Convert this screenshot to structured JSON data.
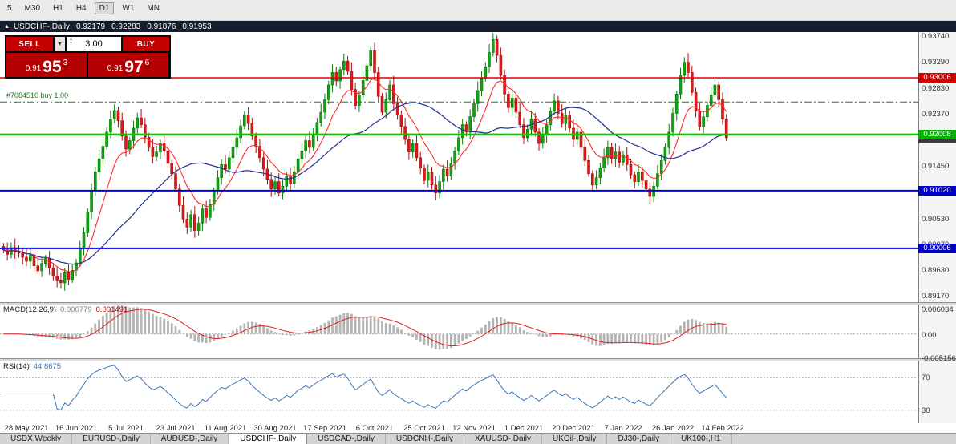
{
  "toolbar": {
    "timeframes": [
      "5",
      "M30",
      "H1",
      "H4",
      "D1",
      "W1",
      "MN"
    ],
    "active": "D1"
  },
  "title_bar": {
    "collapse_icon": "▲",
    "symbol": "USDCHF-,Daily",
    "open": "0.92179",
    "high": "0.92283",
    "low": "0.91876",
    "close": "0.91953"
  },
  "trade_panel": {
    "sell_label": "SELL",
    "buy_label": "BUY",
    "volume": "3.00",
    "dropdown_icon": "▼",
    "spinner_up_icon": "▲",
    "spinner_down_icon": "▼",
    "sell_price": {
      "prefix": "0.91",
      "big": "95",
      "sup": "3"
    },
    "buy_price": {
      "prefix": "0.91",
      "big": "97",
      "sup": "6"
    }
  },
  "position_label": "#7084510 buy 1.00",
  "price_axis": {
    "ticks": [
      "0.93740",
      "0.93290",
      "0.92830",
      "0.92370",
      "0.91910",
      "0.91450",
      "0.90990",
      "0.90530",
      "0.90070",
      "0.89630",
      "0.89170"
    ],
    "badges": [
      {
        "label": "0.91953",
        "price": 0.91953,
        "color": "#3c3c3c"
      },
      {
        "label": "0.93006",
        "price": 0.93006,
        "color": "#d40000"
      },
      {
        "label": "0.92008",
        "price": 0.92008,
        "color": "#00b400"
      },
      {
        "label": "0.91020",
        "price": 0.9102,
        "color": "#0000c8"
      },
      {
        "label": "0.90006",
        "price": 0.90006,
        "color": "#0000c8"
      }
    ]
  },
  "indicators": {
    "macd": {
      "name": "MACD(12,26,9)",
      "value1": "0.000779",
      "value2": "0.001491",
      "axis": [
        {
          "label": "0.006034",
          "value": 0.006034
        },
        {
          "label": "0.00",
          "value": 0
        },
        {
          "label": "-0.005156",
          "value": -0.005156
        }
      ]
    },
    "rsi": {
      "name": "RSI(14)",
      "value": "44.8675",
      "axis": [
        {
          "label": "70",
          "value": 70
        },
        {
          "label": "30",
          "value": 30
        }
      ]
    }
  },
  "date_axis": [
    "28 May 2021",
    "16 Jun 2021",
    "5 Jul 2021",
    "23 Jul 2021",
    "11 Aug 2021",
    "30 Aug 2021",
    "17 Sep 2021",
    "6 Oct 2021",
    "25 Oct 2021",
    "12 Nov 2021",
    "1 Dec 2021",
    "20 Dec 2021",
    "7 Jan 2022",
    "26 Jan 2022",
    "14 Feb 2022"
  ],
  "tabs": [
    {
      "label": "USDX,Weekly",
      "active": false
    },
    {
      "label": "EURUSD-,Daily",
      "active": false
    },
    {
      "label": "AUDUSD-,Daily",
      "active": false
    },
    {
      "label": "USDCHF-,Daily",
      "active": true
    },
    {
      "label": "USDCAD-,Daily",
      "active": false
    },
    {
      "label": "USDCNH-,Daily",
      "active": false
    },
    {
      "label": "XAUUSD-,Daily",
      "active": false
    },
    {
      "label": "UKOil-,Daily",
      "active": false
    },
    {
      "label": "DJ30-,Daily",
      "active": false
    },
    {
      "label": "UK100-,H1",
      "active": false
    }
  ],
  "chart_data": {
    "type": "candlestick",
    "symbol": "USDCHF-",
    "timeframe": "Daily",
    "ohlc_display": {
      "open": 0.92179,
      "high": 0.92283,
      "low": 0.91876,
      "close": 0.91953
    },
    "price_range": [
      0.8906,
      0.9381
    ],
    "closes_pips": [
      8998,
      8990,
      9002,
      8994,
      8992,
      8985,
      8978,
      8989,
      8970,
      8961,
      8974,
      8983,
      8966,
      8952,
      8945,
      8940,
      8958,
      8946,
      8962,
      8975,
      9000,
      9028,
      9065,
      9102,
      9135,
      9158,
      9180,
      9205,
      9228,
      9243,
      9225,
      9198,
      9175,
      9190,
      9212,
      9230,
      9218,
      9196,
      9178,
      9162,
      9170,
      9185,
      9172,
      9150,
      9132,
      9105,
      9076,
      9052,
      9038,
      9060,
      9032,
      9045,
      9070,
      9055,
      9078,
      9102,
      9125,
      9148,
      9140,
      9160,
      9178,
      9195,
      9216,
      9235,
      9220,
      9198,
      9180,
      9160,
      9140,
      9122,
      9105,
      9118,
      9098,
      9110,
      9128,
      9115,
      9135,
      9158,
      9172,
      9190,
      9178,
      9200,
      9222,
      9240,
      9262,
      9288,
      9310,
      9295,
      9315,
      9330,
      9312,
      9280,
      9252,
      9270,
      9296,
      9322,
      9348,
      9310,
      9268,
      9240,
      9262,
      9288,
      9255,
      9235,
      9215,
      9192,
      9170,
      9185,
      9160,
      9142,
      9120,
      9135,
      9112,
      9098,
      9118,
      9140,
      9128,
      9150,
      9172,
      9195,
      9218,
      9205,
      9232,
      9255,
      9278,
      9300,
      9320,
      9345,
      9368,
      9340,
      9305,
      9272,
      9248,
      9265,
      9240,
      9218,
      9195,
      9210,
      9228,
      9205,
      9185,
      9200,
      9218,
      9242,
      9260,
      9238,
      9220,
      9235,
      9212,
      9192,
      9205,
      9178,
      9155,
      9132,
      9112,
      9125,
      9142,
      9160,
      9178,
      9158,
      9170,
      9152,
      9165,
      9148,
      9130,
      9118,
      9135,
      9120,
      9105,
      9092,
      9110,
      9132,
      9155,
      9178,
      9205,
      9238,
      9272,
      9305,
      9328,
      9310,
      9275,
      9242,
      9215,
      9232,
      9252,
      9270,
      9288,
      9262,
      9228,
      9195
    ],
    "grid_first_index": 6,
    "grid_step": 13,
    "first_tick_x": 33,
    "bar_spacing": 4.769,
    "h_lines": [
      {
        "price": 0.93006,
        "color": "#e00000",
        "width": 1.6
      },
      {
        "price": 0.92008,
        "color": "#00cc00",
        "width": 2.4
      },
      {
        "price": 0.9102,
        "color": "#0000e0",
        "width": 2
      },
      {
        "price": 0.90006,
        "color": "#0000e0",
        "width": 2
      }
    ],
    "position_line": {
      "price": 0.9258,
      "label": "#7084510 buy 1.00",
      "color": "#1f7a1f"
    },
    "ma_fast_period": 10,
    "ma_slow_period": 30,
    "macd": {
      "fast": 12,
      "slow": 26,
      "signal": 9,
      "range": [
        -0.0054,
        0.00635
      ]
    },
    "rsi": {
      "period": 14,
      "range": [
        15,
        90
      ],
      "levels": [
        70,
        30
      ]
    },
    "colors": {
      "up": "#12a212",
      "up_stroke": "#0a7a0a",
      "down": "#e01818",
      "down_stroke": "#a80e0e",
      "ma_fast": "#ff2a2a",
      "ma_slow": "#20308f",
      "macd_hist": "#b4b4b4",
      "macd_signal": "#e02020",
      "rsi": "#3a76b8"
    }
  }
}
